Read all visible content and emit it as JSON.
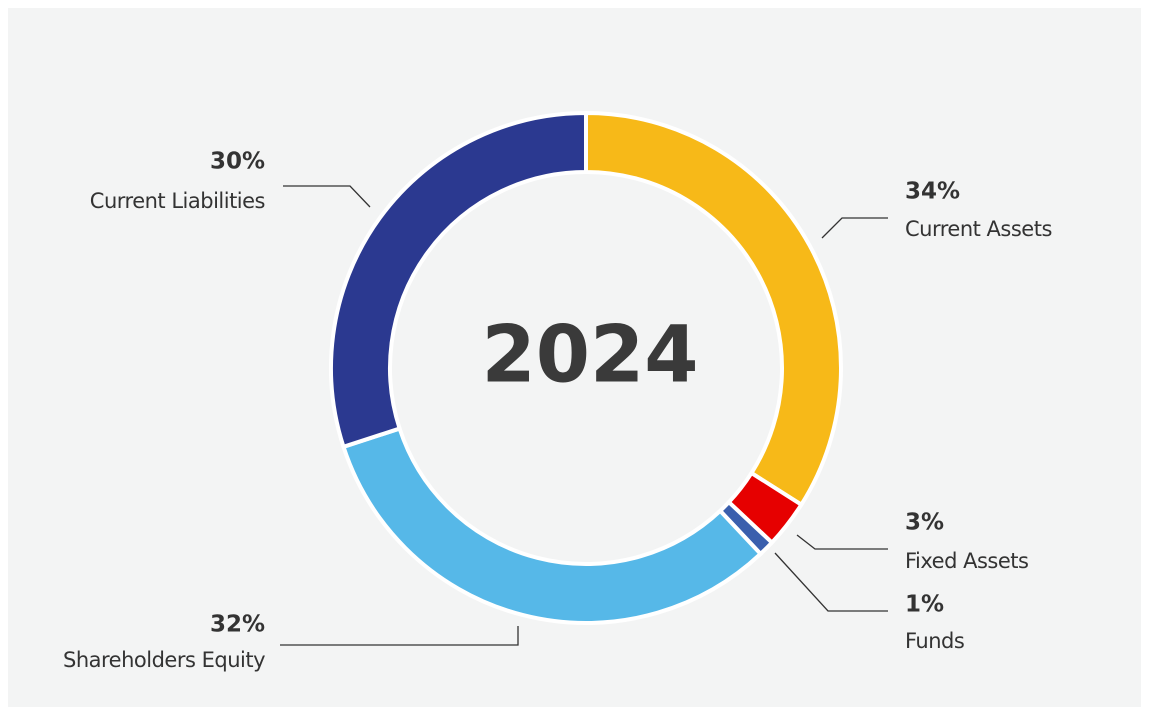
{
  "chart_data": {
    "type": "donut",
    "center_label": "2024",
    "categories": [
      "Current Assets",
      "Fixed Assets",
      "Funds",
      "Shareholders Equity",
      "Current Liabilities"
    ],
    "values": [
      34,
      3,
      1,
      32,
      30
    ],
    "value_labels": [
      "34%",
      "3%",
      "1%",
      "32%",
      "30%"
    ],
    "colors": [
      "#f7b918",
      "#e60000",
      "#3a5fad",
      "#56b8e8",
      "#2b3990"
    ]
  }
}
